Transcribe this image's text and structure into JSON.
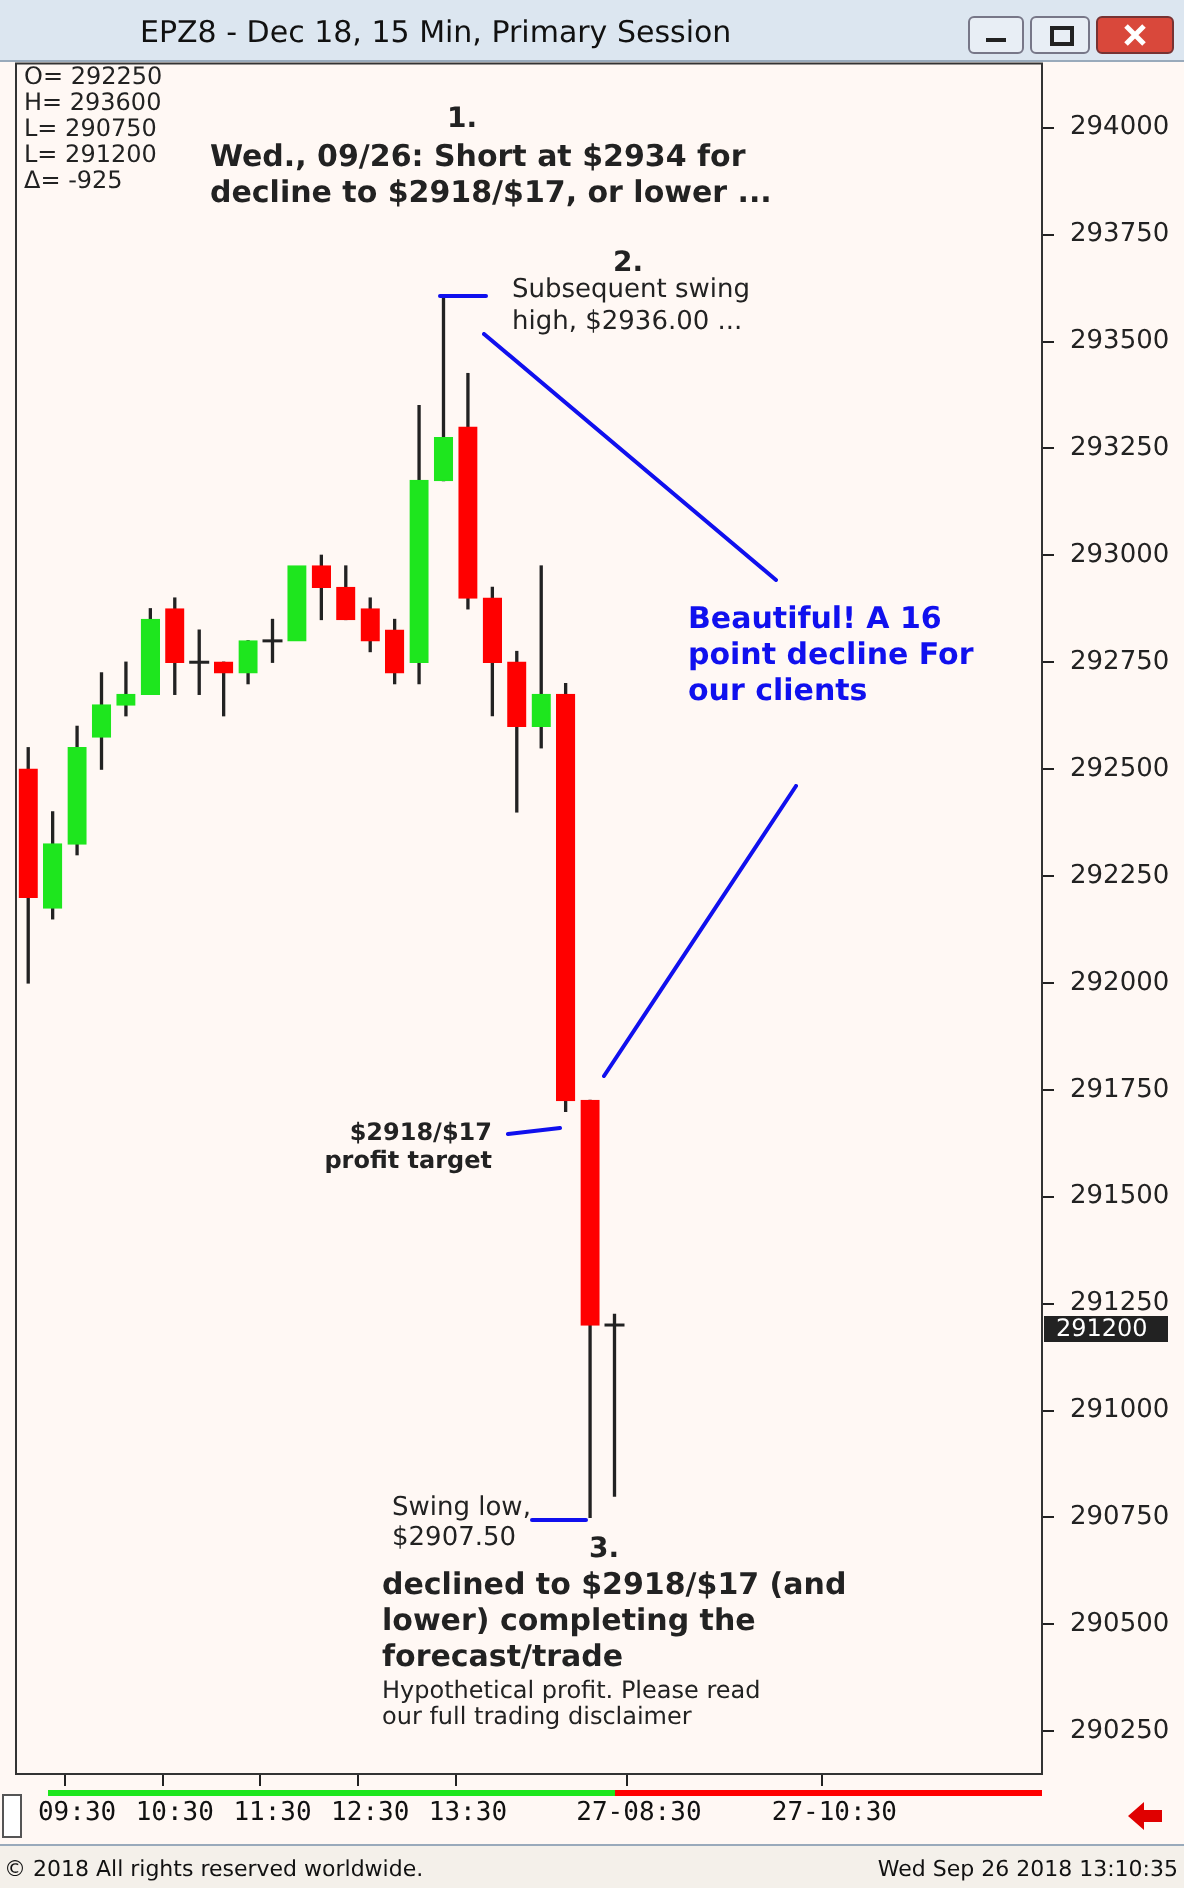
{
  "chart_data": {
    "type": "candlestick",
    "title": "EPZ8 - Dec 18, 15 Min, Primary Session",
    "categories": [
      null,
      null,
      "09:30",
      null,
      null,
      null,
      "10:30",
      null,
      null,
      null,
      "11:30",
      null,
      null,
      null,
      "12:30",
      null,
      null,
      null,
      "13:30",
      null,
      null,
      null,
      null,
      null,
      null,
      "27-08:30",
      null,
      null,
      null,
      null,
      null,
      null,
      null,
      "27-10:30",
      null,
      null,
      null,
      null,
      null,
      null,
      null,
      null
    ],
    "ohlc": [
      [
        292500,
        292550,
        292000,
        292200
      ],
      [
        292175,
        292400,
        292150,
        292325
      ],
      [
        292325,
        292600,
        292300,
        292550
      ],
      [
        292575,
        292725,
        292500,
        292650
      ],
      [
        292650,
        292750,
        292625,
        292675
      ],
      [
        292675,
        292875,
        292675,
        292850
      ],
      [
        292875,
        292900,
        292675,
        292750
      ],
      [
        292750,
        292825,
        292675,
        292750
      ],
      [
        292750,
        292750,
        292625,
        292725
      ],
      [
        292725,
        292800,
        292700,
        292800
      ],
      [
        292800,
        292850,
        292750,
        292800
      ],
      [
        292800,
        292975,
        292800,
        292975
      ],
      [
        292975,
        293000,
        292850,
        292925
      ],
      [
        292925,
        292975,
        292850,
        292850
      ],
      [
        292875,
        292900,
        292775,
        292800
      ],
      [
        292825,
        292850,
        292700,
        292725
      ],
      [
        292750,
        293350,
        292700,
        293175
      ],
      [
        293175,
        293600,
        293175,
        293275
      ],
      [
        293300,
        293425,
        292875,
        292900
      ],
      [
        292900,
        292925,
        292625,
        292750
      ],
      [
        292750,
        292775,
        292400,
        292600
      ],
      [
        292600,
        292975,
        292550,
        292675
      ],
      [
        292675,
        292700,
        291700,
        291725
      ],
      [
        291725,
        291725,
        290750,
        291200
      ],
      [
        291200,
        291225,
        290800,
        291200
      ],
      null,
      null,
      null,
      null,
      null,
      null,
      null,
      null,
      null,
      null,
      null,
      null,
      null,
      null,
      null,
      null,
      null
    ],
    "colors": [
      "#ff0000",
      "#1ee61e",
      "#1ee61e",
      "#1ee61e",
      "#1ee61e",
      "#1ee61e",
      "#ff0000",
      "#222222",
      "#ff0000",
      "#1ee61e",
      "#222222",
      "#1ee61e",
      "#ff0000",
      "#ff0000",
      "#ff0000",
      "#ff0000",
      "#1ee61e",
      "#1ee61e",
      "#ff0000",
      "#ff0000",
      "#ff0000",
      "#1ee61e",
      "#ff0000",
      "#ff0000",
      "#222222",
      null,
      null,
      null,
      null,
      null,
      null,
      null,
      null,
      null,
      null,
      null,
      null,
      null,
      null,
      null,
      null,
      null
    ],
    "ylim": [
      290150,
      294150
    ],
    "yticks": [
      290250,
      290500,
      290750,
      291000,
      291250,
      291500,
      291750,
      292000,
      292250,
      292500,
      292750,
      293000,
      293250,
      293500,
      293750,
      294000
    ],
    "annotations": [
      "O= 292250",
      "H= 293600",
      "L= 290750",
      "L= 291200",
      "Δ= -925",
      "1.",
      "Wed., 09/26: Short at $2934 for decline to $2918/$17, or lower ...",
      "2.",
      "Subsequent swing high, $2936.00 ...",
      "Beautiful! A 16 point decline For our clients",
      "$2918/$17 profit target",
      "Swing low, $2907.50",
      "3.",
      "declined to $2918/$17 (and lower) completing the forecast/trade",
      "Hypothetical profit. Please read our full trading disclaimer",
      "291200",
      "© 2018 All rights reserved worldwide.",
      "Wed Sep 26 2018 13:10:35"
    ]
  }
}
